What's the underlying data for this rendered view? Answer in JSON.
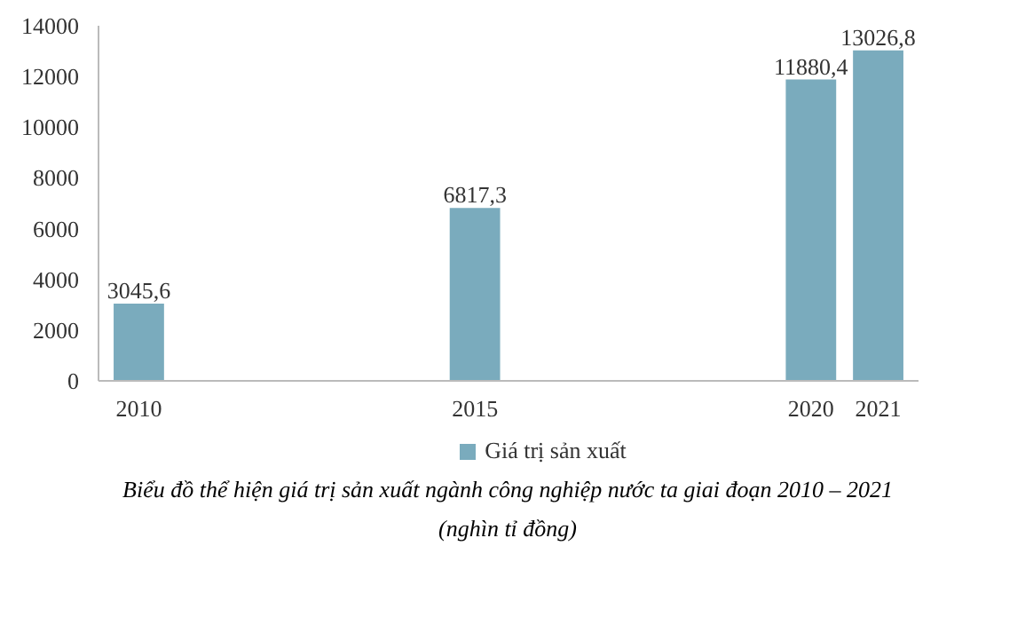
{
  "chart_data": {
    "type": "bar",
    "x": [
      2010,
      2015,
      2020,
      2021
    ],
    "series": [
      {
        "name": "Giá trị sản xuất",
        "color": "#7aabbd",
        "values": [
          3045.6,
          6817.3,
          11880.4,
          13026.8
        ],
        "value_labels": [
          "3045,6",
          "6817,3",
          "11880,4",
          "13026,8"
        ]
      }
    ],
    "xlim": [
      2009.4,
      2021.6
    ],
    "xticks": [
      2010,
      2015,
      2020,
      2021
    ],
    "ylim": [
      0,
      14000
    ],
    "yticks": [
      0,
      2000,
      4000,
      6000,
      8000,
      10000,
      12000,
      14000
    ],
    "grid": false,
    "legend": "bottom",
    "annotations": [
      "Biểu đồ thể hiện giá trị sản xuất ngành công nghiệp nước ta giai đoạn 2010 – 2021",
      "(nghìn tỉ đồng)"
    ]
  }
}
